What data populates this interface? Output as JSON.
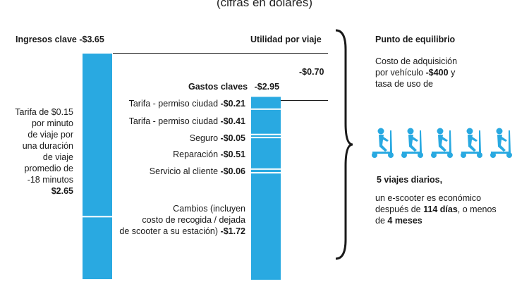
{
  "subtitle": "(cifras en dólares)",
  "chart_data": {
    "type": "bar",
    "colors": {
      "bar": "#29a9e1",
      "separator": "#ffffff",
      "line": "#1a1a1a"
    },
    "revenue": {
      "title": "Ingresos clave",
      "total": "-$3.65",
      "segments": [
        {
          "label_lines": [
            "Tarifa de $0.15",
            "por minuto",
            "de viaje por",
            "una duración",
            "de viaje",
            "promedio de",
            "-18 minutos"
          ],
          "value_label": "$2.65",
          "value": 2.65
        },
        {
          "label_lines": [],
          "value_label": "$1.00",
          "value": 1.0
        }
      ]
    },
    "profit": {
      "title": "Utilidad por viaje",
      "value_label": "-$0.70",
      "value": 0.7
    },
    "expenses": {
      "title": "Gastos claves",
      "total": "-$2.95",
      "items": [
        {
          "label_lines": [
            "Tarifa - permiso ciudad"
          ],
          "value_label": "-$0.21",
          "value": 0.21
        },
        {
          "label_lines": [
            "Tarifa - permiso ciudad"
          ],
          "value_label": "-$0.41",
          "value": 0.41
        },
        {
          "label_lines": [
            "Seguro"
          ],
          "value_label": "-$0.05",
          "value": 0.05
        },
        {
          "label_lines": [
            "Reparación"
          ],
          "value_label": "-$0.51",
          "value": 0.51
        },
        {
          "label_lines": [
            "Servicio al cliente"
          ],
          "value_label": "-$0.06",
          "value": 0.06
        },
        {
          "label_lines": [
            "Cambios (incluyen",
            "costo de recogida / dejada",
            "de scooter a su estación)"
          ],
          "value_label": "-$1.72",
          "value": 1.72
        }
      ]
    }
  },
  "breakeven": {
    "title": "Punto de equilibrio",
    "cost_lines": [
      "Costo de adquisición",
      "por vehículo",
      "y",
      "tasa de uso de"
    ],
    "cost_value": "-$400",
    "scooter_icon": "e-scooter-rider-icon",
    "scooter_count": 5,
    "trips": "5 viajes diarios,",
    "conclusion_lines": [
      "un e-scooter es económico",
      "después de",
      ", o menos",
      "de"
    ],
    "days": "114 días",
    "months": "4 meses"
  }
}
